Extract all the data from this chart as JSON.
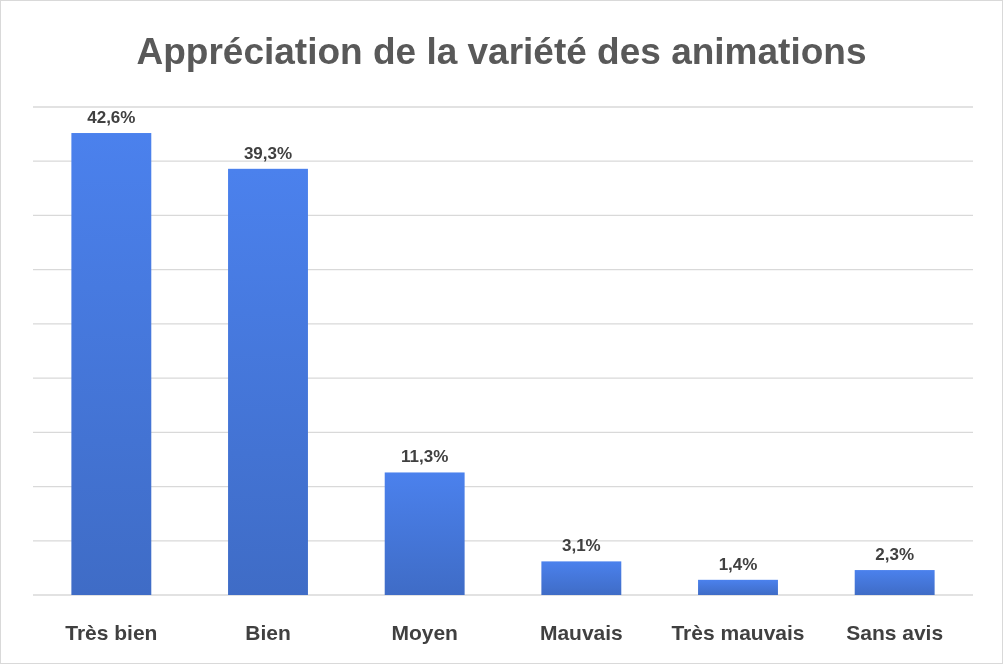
{
  "chart_data": {
    "type": "bar",
    "title": "Appréciation de la variété des animations",
    "categories": [
      "Très bien",
      "Bien",
      "Moyen",
      "Mauvais",
      "Très mauvais",
      "Sans avis"
    ],
    "values": [
      42.6,
      39.3,
      11.3,
      3.1,
      1.4,
      2.3
    ],
    "value_labels": [
      "42,6%",
      "39,3%",
      "11,3%",
      "3,1%",
      "1,4%",
      "2,3%"
    ],
    "color": "#3f6cc6",
    "ylim": [
      0,
      45
    ],
    "yticks": [
      {
        "value": 0,
        "label": null
      },
      {
        "value": 5,
        "label": null
      },
      {
        "value": 10,
        "label": null
      },
      {
        "value": 15,
        "label": null
      },
      {
        "value": 20,
        "label": null
      },
      {
        "value": 25,
        "label": null
      },
      {
        "value": 30,
        "label": null
      },
      {
        "value": 35,
        "label": null
      },
      {
        "value": 40,
        "label": null
      },
      {
        "value": 45,
        "label": null
      }
    ],
    "grid": "y",
    "tick_labels": "x"
  }
}
